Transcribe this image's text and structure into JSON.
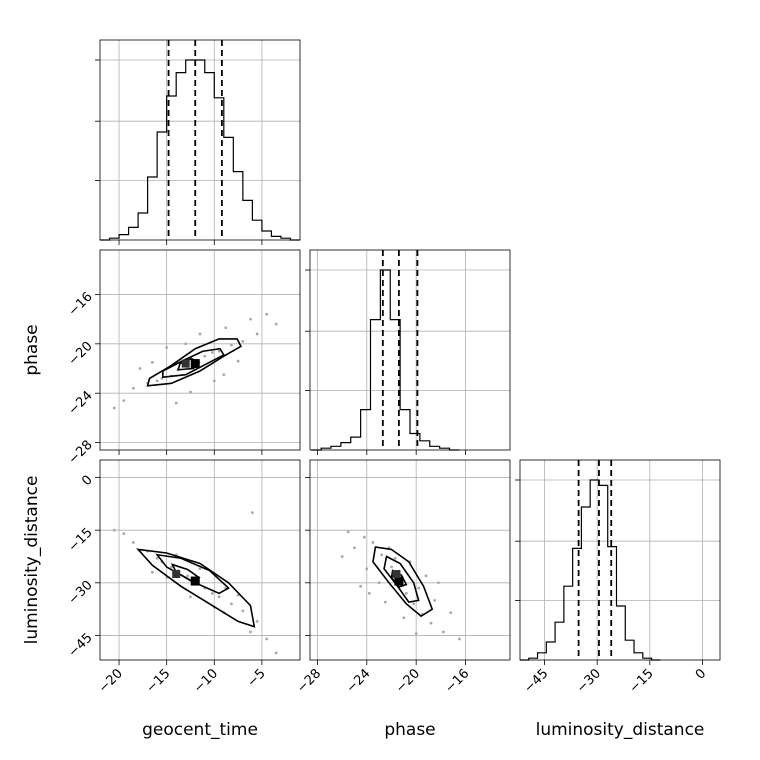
{
  "chart_data": {
    "type": "corner",
    "parameters": [
      "geocent_time",
      "phase",
      "luminosity_distance"
    ],
    "ranges": {
      "geocent_time": [
        -22.0,
        -1.0
      ],
      "phase": [
        -28.6,
        -12.4
      ],
      "luminosity_distance": [
        -52.0,
        5.0
      ]
    },
    "ticks": {
      "geocent_time": [
        -20,
        -15,
        -10,
        -5
      ],
      "phase": [
        -28,
        -24,
        -20,
        -16
      ],
      "luminosity_distance": [
        -45,
        -30,
        -15,
        0
      ]
    },
    "tick_labels": {
      "geocent_time": [
        "−20",
        "−15",
        "−10",
        "−5"
      ],
      "phase": [
        "−28",
        "−24",
        "−20",
        "−16"
      ],
      "luminosity_distance": [
        "−45",
        "−30",
        "−15",
        "0"
      ]
    },
    "quantiles": {
      "geocent_time": [
        -14.8,
        -12.0,
        -9.2
      ],
      "phase": [
        -22.7,
        -21.4,
        -19.9
      ],
      "luminosity_distance": [
        -35.3,
        -29.5,
        -26.0
      ]
    },
    "histograms": {
      "geocent_time": {
        "bin_edges": [
          -22,
          -21,
          -20,
          -19,
          -18,
          -17,
          -16,
          -15,
          -14,
          -13,
          -12,
          -11,
          -10,
          -9,
          -8,
          -7,
          -6,
          -5,
          -4,
          -3,
          -2,
          -1
        ],
        "counts": [
          0.0,
          0.01,
          0.03,
          0.07,
          0.15,
          0.35,
          0.6,
          0.8,
          0.93,
          1.0,
          1.0,
          0.93,
          0.79,
          0.57,
          0.38,
          0.22,
          0.11,
          0.05,
          0.02,
          0.01,
          0.0
        ]
      },
      "phase": {
        "bin_edges": [
          -28.5,
          -27.7,
          -26.9,
          -26.1,
          -25.3,
          -24.5,
          -23.7,
          -22.9,
          -22.1,
          -21.3,
          -20.5,
          -19.7,
          -18.9,
          -18.1,
          -17.3,
          -16.5
        ],
        "counts": [
          0.0,
          0.01,
          0.02,
          0.04,
          0.07,
          0.22,
          0.71,
          0.98,
          0.71,
          0.22,
          0.09,
          0.05,
          0.02,
          0.01,
          0.0
        ]
      },
      "luminosity_distance": {
        "bin_edges": [
          -52,
          -49.5,
          -47,
          -44.5,
          -42,
          -39.5,
          -37,
          -34.5,
          -32,
          -29.5,
          -27,
          -24.5,
          -22,
          -19.5,
          -17,
          -14.5,
          -12
        ],
        "counts": [
          0.0,
          0.01,
          0.04,
          0.1,
          0.21,
          0.41,
          0.62,
          0.85,
          1.0,
          0.97,
          0.63,
          0.3,
          0.11,
          0.04,
          0.01,
          0.0
        ]
      }
    },
    "pairs": [
      {
        "x": "geocent_time",
        "y": "phase",
        "points": [
          [
            -12.0,
            -21.6
          ],
          [
            -15.5,
            -22.8
          ],
          [
            -9.5,
            -20.6
          ],
          [
            -13.8,
            -22.1
          ],
          [
            -7.0,
            -19.8
          ],
          [
            -17.0,
            -23.2
          ],
          [
            -11.0,
            -21.0
          ],
          [
            -10.2,
            -20.7
          ],
          [
            -14.5,
            -22.6
          ],
          [
            -8.2,
            -20.1
          ],
          [
            -16.0,
            -23.0
          ],
          [
            -12.8,
            -21.9
          ],
          [
            -5.5,
            -19.2
          ],
          [
            -18.5,
            -23.6
          ],
          [
            -6.2,
            -18.0
          ],
          [
            -14.0,
            -24.8
          ],
          [
            -9.0,
            -22.5
          ],
          [
            -15.0,
            -20.3
          ],
          [
            -4.5,
            -17.6
          ],
          [
            -19.5,
            -24.6
          ],
          [
            -11.5,
            -19.2
          ],
          [
            -12.5,
            -23.9
          ],
          [
            -8.8,
            -18.7
          ],
          [
            -16.5,
            -21.5
          ],
          [
            -3.5,
            -18.4
          ],
          [
            -20.5,
            -25.2
          ],
          [
            -13.0,
            -20.0
          ],
          [
            -10.0,
            -23.0
          ],
          [
            -7.5,
            -21.4
          ],
          [
            -17.8,
            -22.0
          ]
        ],
        "contours": [
          [
            [
              -17.0,
              -23.4
            ],
            [
              -14.5,
              -23.2
            ],
            [
              -11.5,
              -22.2
            ],
            [
              -9.0,
              -21.0
            ],
            [
              -7.2,
              -20.2
            ],
            [
              -7.6,
              -19.6
            ],
            [
              -9.5,
              -19.6
            ],
            [
              -12.0,
              -20.4
            ],
            [
              -14.6,
              -21.8
            ],
            [
              -16.8,
              -22.8
            ]
          ],
          [
            [
              -15.4,
              -22.7
            ],
            [
              -13.0,
              -22.5
            ],
            [
              -10.5,
              -21.5
            ],
            [
              -9.0,
              -20.9
            ],
            [
              -9.4,
              -20.4
            ],
            [
              -11.2,
              -20.6
            ],
            [
              -13.4,
              -21.4
            ],
            [
              -15.4,
              -22.2
            ]
          ],
          [
            [
              -13.8,
              -22.1
            ],
            [
              -12.2,
              -22.0
            ],
            [
              -11.6,
              -21.5
            ],
            [
              -12.4,
              -21.2
            ],
            [
              -13.6,
              -21.6
            ]
          ]
        ],
        "peaks": [
          [
            -12.0,
            -21.6
          ],
          [
            -13.0,
            -21.6
          ]
        ]
      },
      {
        "x": "geocent_time",
        "y": "luminosity_distance",
        "points": [
          [
            -12.0,
            -29.5
          ],
          [
            -15.5,
            -24.0
          ],
          [
            -9.5,
            -34.0
          ],
          [
            -13.8,
            -26.5
          ],
          [
            -7.0,
            -38.0
          ],
          [
            -17.0,
            -21.0
          ],
          [
            -11.0,
            -31.5
          ],
          [
            -10.2,
            -33.0
          ],
          [
            -14.5,
            -25.5
          ],
          [
            -8.2,
            -36.0
          ],
          [
            -16.0,
            -23.0
          ],
          [
            -12.8,
            -28.0
          ],
          [
            -5.5,
            -41.0
          ],
          [
            -18.5,
            -18.5
          ],
          [
            -6.2,
            -44.0
          ],
          [
            -14.0,
            -22.0
          ],
          [
            -9.0,
            -38.5
          ],
          [
            -15.0,
            -28.5
          ],
          [
            -4.5,
            -46.0
          ],
          [
            -19.5,
            -16.0
          ],
          [
            -11.5,
            -26.0
          ],
          [
            -12.5,
            -34.0
          ],
          [
            -8.8,
            -31.5
          ],
          [
            -16.5,
            -27.0
          ],
          [
            -3.5,
            -50.0
          ],
          [
            -20.5,
            -15.0
          ],
          [
            -13.0,
            -23.5
          ],
          [
            -10.0,
            -37.0
          ],
          [
            -7.5,
            -33.5
          ],
          [
            -6.0,
            -10.0
          ]
        ],
        "contours": [
          [
            [
              -18.0,
              -20.5
            ],
            [
              -15.0,
              -21.5
            ],
            [
              -11.5,
              -24.5
            ],
            [
              -8.5,
              -30.0
            ],
            [
              -6.2,
              -36.5
            ],
            [
              -5.8,
              -42.5
            ],
            [
              -7.5,
              -41.0
            ],
            [
              -10.5,
              -36.0
            ],
            [
              -13.5,
              -31.0
            ],
            [
              -16.5,
              -25.0
            ]
          ],
          [
            [
              -16.0,
              -22.0
            ],
            [
              -13.5,
              -23.0
            ],
            [
              -10.5,
              -26.5
            ],
            [
              -8.5,
              -31.5
            ],
            [
              -9.5,
              -33.0
            ],
            [
              -12.0,
              -30.0
            ],
            [
              -15.0,
              -25.5
            ]
          ],
          [
            [
              -14.4,
              -24.8
            ],
            [
              -12.8,
              -26.2
            ],
            [
              -11.6,
              -28.5
            ],
            [
              -12.4,
              -29.5
            ],
            [
              -14.0,
              -27.0
            ]
          ]
        ],
        "peaks": [
          [
            -12.0,
            -29.5
          ],
          [
            -14.0,
            -27.5
          ]
        ]
      },
      {
        "x": "phase",
        "y": "luminosity_distance",
        "points": [
          [
            -21.4,
            -29.5
          ],
          [
            -22.8,
            -22.0
          ],
          [
            -20.2,
            -36.0
          ],
          [
            -22.0,
            -25.5
          ],
          [
            -19.5,
            -39.0
          ],
          [
            -23.5,
            -18.5
          ],
          [
            -20.8,
            -33.0
          ],
          [
            -21.9,
            -27.0
          ],
          [
            -18.8,
            -41.5
          ],
          [
            -24.2,
            -17.0
          ],
          [
            -19.8,
            -31.5
          ],
          [
            -23.0,
            -30.0
          ],
          [
            -20.5,
            -24.0
          ],
          [
            -17.8,
            -44.0
          ],
          [
            -25.0,
            -20.0
          ],
          [
            -22.5,
            -35.5
          ],
          [
            -18.5,
            -35.0
          ],
          [
            -24.0,
            -26.0
          ],
          [
            -21.0,
            -40.0
          ],
          [
            -22.2,
            -20.0
          ],
          [
            -16.5,
            -46.0
          ],
          [
            -26.0,
            -22.5
          ],
          [
            -19.2,
            -28.0
          ],
          [
            -23.8,
            -33.0
          ],
          [
            -20.0,
            -44.5
          ],
          [
            -17.2,
            -38.5
          ],
          [
            -25.5,
            -15.5
          ],
          [
            -21.7,
            -23.0
          ],
          [
            -18.2,
            -30.0
          ],
          [
            -24.5,
            -31.0
          ]
        ],
        "contours": [
          [
            [
              -23.3,
              -19.8
            ],
            [
              -22.0,
              -20.5
            ],
            [
              -20.6,
              -24.0
            ],
            [
              -19.4,
              -31.0
            ],
            [
              -18.7,
              -37.5
            ],
            [
              -19.6,
              -39.5
            ],
            [
              -20.8,
              -36.0
            ],
            [
              -22.2,
              -30.0
            ],
            [
              -23.5,
              -24.0
            ]
          ],
          [
            [
              -22.4,
              -22.5
            ],
            [
              -21.3,
              -24.5
            ],
            [
              -20.2,
              -30.0
            ],
            [
              -19.8,
              -35.0
            ],
            [
              -20.6,
              -35.5
            ],
            [
              -21.5,
              -31.0
            ],
            [
              -22.6,
              -26.0
            ]
          ],
          [
            [
              -21.9,
              -26.5
            ],
            [
              -21.2,
              -27.8
            ],
            [
              -20.8,
              -30.5
            ],
            [
              -21.4,
              -31.2
            ],
            [
              -22.0,
              -28.5
            ]
          ]
        ],
        "peaks": [
          [
            -21.4,
            -29.5
          ],
          [
            -21.6,
            -27.5
          ]
        ]
      }
    ]
  }
}
